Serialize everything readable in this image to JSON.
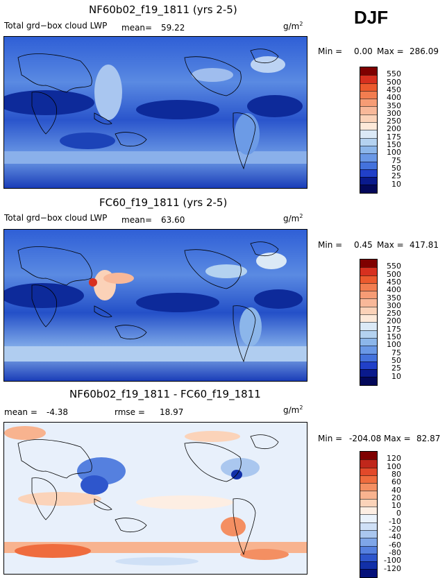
{
  "season": "DJF",
  "panels": [
    {
      "title": "NF60b02_f19_1811 (yrs 2-5)",
      "variable": "Total grd−box cloud LWP",
      "mean_label": "mean=",
      "mean": "59.22",
      "units": "g/m",
      "units_exp": "2",
      "min_label": "Min =",
      "min": "0.00",
      "max_label": "Max =",
      "max": "286.09",
      "colorbar": {
        "levels": [
          "550",
          "500",
          "450",
          "400",
          "350",
          "300",
          "250",
          "200",
          "175",
          "150",
          "100",
          "75",
          "50",
          "25",
          "10"
        ],
        "colors": [
          "#7f0000",
          "#d7301f",
          "#ec5a2e",
          "#f27d50",
          "#f69c75",
          "#f8b899",
          "#fbd2b8",
          "#fde9d9",
          "#dbe9f6",
          "#b4d2f0",
          "#8cb6ea",
          "#6a98e6",
          "#4472dc",
          "#2140c8",
          "#0a1a8c",
          "#03085a"
        ]
      }
    },
    {
      "title": "FC60_f19_1811 (yrs 2-5)",
      "variable": "Total grd−box cloud LWP",
      "mean_label": "mean=",
      "mean": "63.60",
      "units": "g/m",
      "units_exp": "2",
      "min_label": "Min =",
      "min": "0.45",
      "max_label": "Max =",
      "max": "417.81",
      "colorbar": {
        "levels": [
          "550",
          "500",
          "450",
          "400",
          "350",
          "300",
          "250",
          "200",
          "175",
          "150",
          "100",
          "75",
          "50",
          "25",
          "10"
        ],
        "colors": [
          "#7f0000",
          "#d7301f",
          "#ec5a2e",
          "#f27d50",
          "#f69c75",
          "#f8b899",
          "#fbd2b8",
          "#fde9d9",
          "#dbe9f6",
          "#b4d2f0",
          "#8cb6ea",
          "#6a98e6",
          "#4472dc",
          "#2140c8",
          "#0a1a8c",
          "#03085a"
        ]
      }
    },
    {
      "title": "NF60b02_f19_1811 - FC60_f19_1811",
      "mean_label": "mean =",
      "mean": "-4.38",
      "rmse_label": "rmse =",
      "rmse": "18.97",
      "units": "g/m",
      "units_exp": "2",
      "min_label": "Min =",
      "min": "-204.08",
      "max_label": "Max =",
      "max": "82.87",
      "colorbar": {
        "levels": [
          "120",
          "100",
          "80",
          "60",
          "40",
          "20",
          "10",
          "0",
          "-10",
          "-20",
          "-40",
          "-60",
          "-80",
          "-100",
          "-120"
        ],
        "colors": [
          "#7f0000",
          "#c0271b",
          "#e2492a",
          "#ef6c3e",
          "#f48f62",
          "#f8b38f",
          "#fbd3b9",
          "#fdeee3",
          "#eaf2fb",
          "#cfe0f6",
          "#aac7ef",
          "#7fa6e8",
          "#5580df",
          "#2e56cc",
          "#1230a8",
          "#04107a"
        ]
      }
    }
  ]
}
